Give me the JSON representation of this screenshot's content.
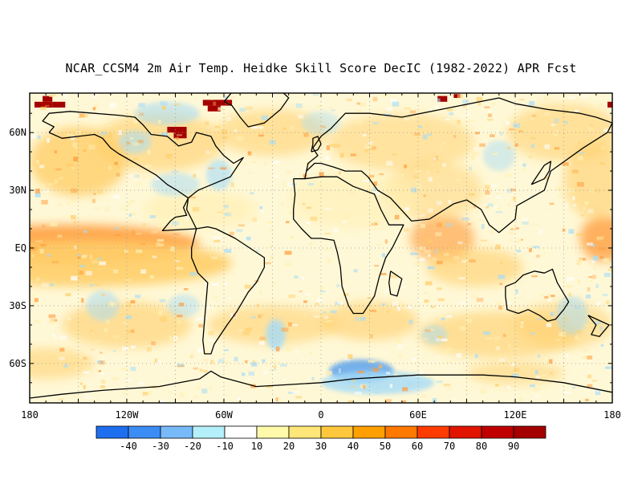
{
  "title": "NCAR_CCSM4 2m Air Temp. Heidke Skill Score DecIC (1982-2022) APR Fcst",
  "lat_labels": [
    {
      "lat": 60,
      "text": "60N"
    },
    {
      "lat": 30,
      "text": "30N"
    },
    {
      "lat": 0,
      "text": "EQ"
    },
    {
      "lat": -30,
      "text": "30S"
    },
    {
      "lat": -60,
      "text": "60S"
    }
  ],
  "lon_labels": [
    {
      "lon": 0,
      "text": "180"
    },
    {
      "lon": 60,
      "text": "120W"
    },
    {
      "lon": 120,
      "text": "60W"
    },
    {
      "lon": 180,
      "text": "0"
    },
    {
      "lon": 240,
      "text": "60E"
    },
    {
      "lon": 300,
      "text": "120E"
    },
    {
      "lon": 360,
      "text": "180"
    }
  ],
  "colorbar": {
    "colors": [
      "#1e6ef0",
      "#3c8cf5",
      "#78b9fa",
      "#b4f0fa",
      "#ffffff",
      "#fffaaa",
      "#ffe678",
      "#ffc83c",
      "#ffa000",
      "#ff7800",
      "#ff3c00",
      "#e11400",
      "#c00000",
      "#a50000"
    ],
    "labels": [
      "-40",
      "-30",
      "-20",
      "-10",
      "10",
      "20",
      "30",
      "40",
      "50",
      "60",
      "70",
      "80",
      "90"
    ]
  },
  "colors": {
    "land_outline": "#000000",
    "grid": "#999999",
    "field_light": "#fff0b4",
    "field_medium": "#ffcf6a",
    "field_strong": "#ff9a38",
    "field_negative": "#a6dcf8",
    "field_negative_strong": "#5ea4ee",
    "field_extreme": "#a50000"
  }
}
